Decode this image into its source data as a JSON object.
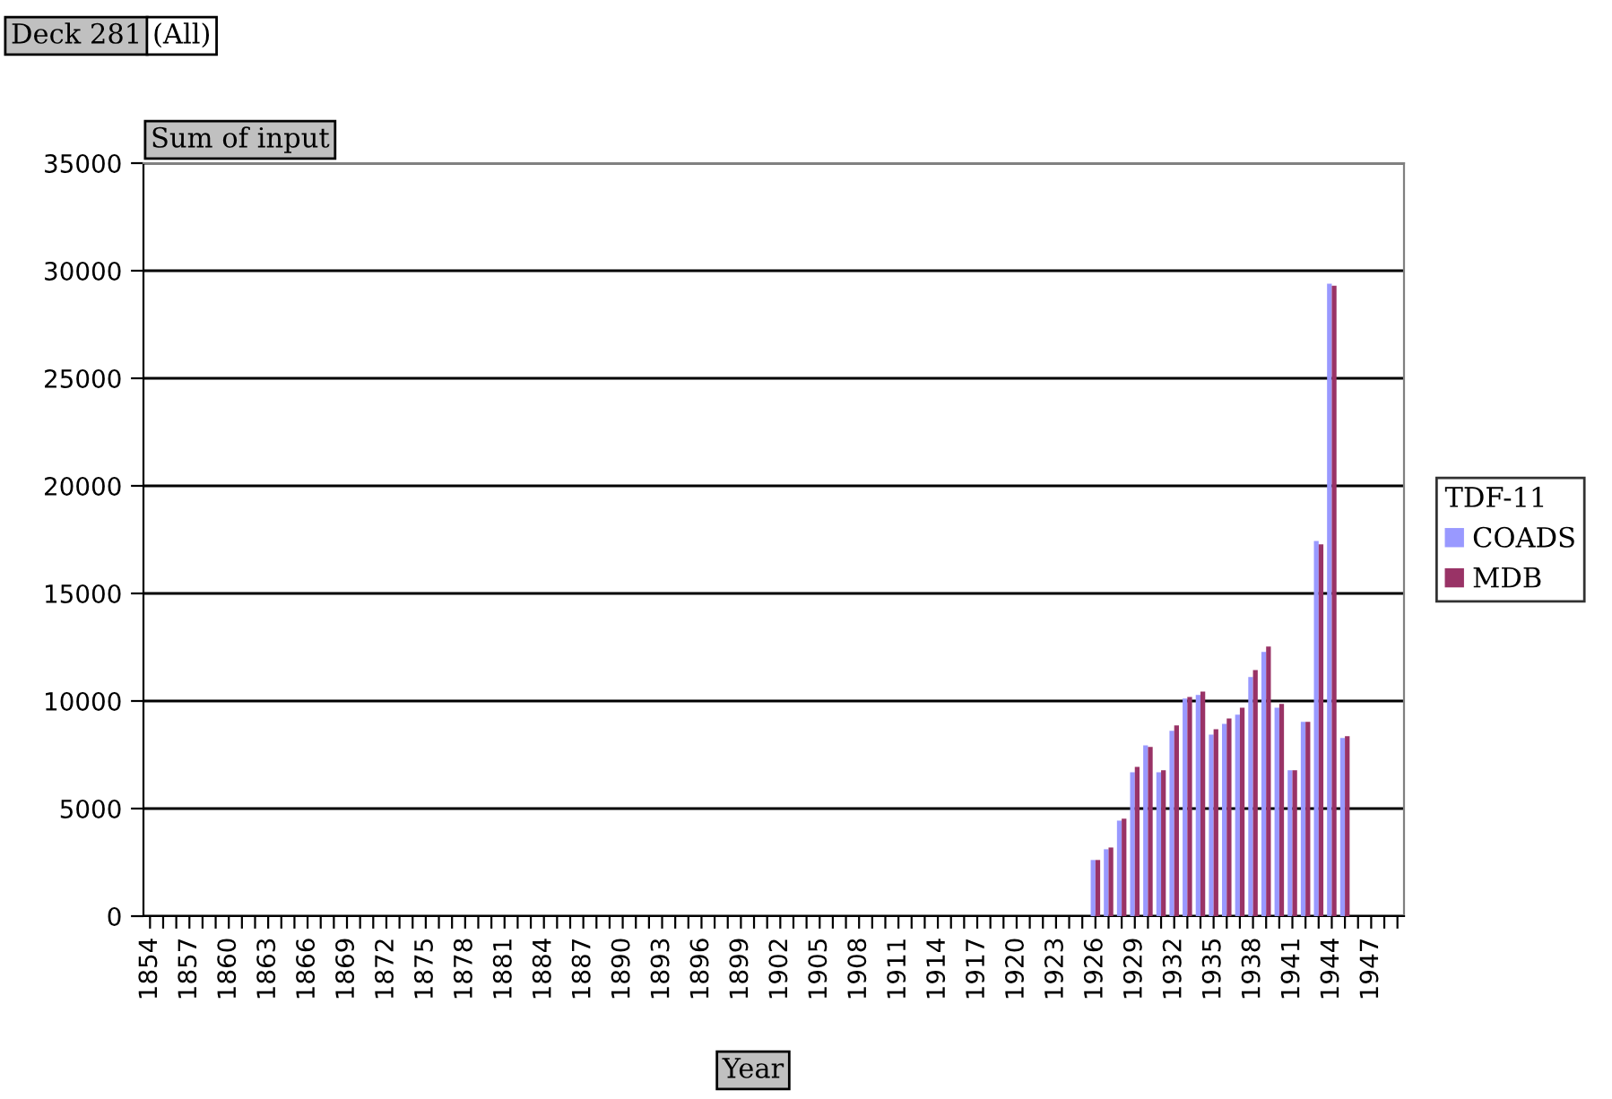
{
  "chart_data": {
    "type": "bar",
    "annotations": [
      "Deck 281",
      "(All)"
    ],
    "ylabel": "Sum of input",
    "xlabel": "Year",
    "legend_title": "TDF-11",
    "categories": [
      "1854",
      null,
      null,
      "1857",
      null,
      null,
      "1860",
      null,
      null,
      "1863",
      null,
      null,
      "1866",
      null,
      null,
      "1869",
      null,
      null,
      "1872",
      null,
      null,
      "1875",
      null,
      null,
      "1878",
      null,
      null,
      "1881",
      null,
      null,
      "1884",
      null,
      null,
      "1887",
      null,
      null,
      "1890",
      null,
      null,
      "1893",
      null,
      null,
      "1896",
      null,
      null,
      "1899",
      null,
      null,
      "1902",
      null,
      null,
      "1905",
      null,
      null,
      "1908",
      null,
      null,
      "1911",
      null,
      null,
      "1914",
      null,
      null,
      "1917",
      null,
      null,
      "1920",
      null,
      null,
      "1923",
      null,
      null,
      "1926",
      null,
      null,
      "1929",
      null,
      null,
      "1932",
      null,
      null,
      "1935",
      null,
      null,
      "1938",
      null,
      null,
      "1941",
      null,
      null,
      "1944",
      null,
      null,
      "1947",
      null,
      null
    ],
    "series": [
      {
        "name": "COADS",
        "color": "#9999ff",
        "values": [
          null,
          null,
          null,
          null,
          null,
          null,
          null,
          null,
          null,
          null,
          null,
          null,
          null,
          null,
          null,
          null,
          null,
          null,
          null,
          null,
          null,
          null,
          null,
          null,
          null,
          null,
          null,
          null,
          null,
          null,
          null,
          null,
          null,
          null,
          null,
          null,
          null,
          null,
          null,
          null,
          null,
          null,
          null,
          null,
          null,
          null,
          null,
          null,
          null,
          null,
          null,
          null,
          null,
          null,
          null,
          null,
          null,
          null,
          null,
          null,
          null,
          null,
          null,
          null,
          null,
          null,
          null,
          null,
          null,
          null,
          null,
          null,
          2610,
          3110,
          4440,
          6690,
          7940,
          6690,
          8610,
          10110,
          10280,
          8440,
          8940,
          9360,
          11110,
          12280,
          9690,
          6780,
          9030,
          17440,
          29400,
          8280,
          null,
          null,
          null,
          null
        ]
      },
      {
        "name": "MDB",
        "color": "#993366",
        "values": [
          null,
          null,
          null,
          null,
          null,
          null,
          null,
          null,
          null,
          null,
          null,
          null,
          null,
          null,
          null,
          null,
          null,
          null,
          null,
          null,
          null,
          null,
          null,
          null,
          null,
          null,
          null,
          null,
          null,
          null,
          null,
          null,
          null,
          null,
          null,
          null,
          null,
          null,
          null,
          null,
          null,
          null,
          null,
          null,
          null,
          null,
          null,
          null,
          null,
          null,
          null,
          null,
          null,
          null,
          null,
          null,
          null,
          null,
          null,
          null,
          null,
          null,
          null,
          null,
          null,
          null,
          null,
          null,
          null,
          null,
          null,
          null,
          2610,
          3190,
          4530,
          6940,
          7860,
          6780,
          8860,
          10190,
          10440,
          8690,
          9190,
          9690,
          11440,
          12530,
          9860,
          6780,
          9030,
          17280,
          29300,
          8360,
          null,
          null,
          null,
          null
        ]
      }
    ],
    "ylim": [
      0,
      35000
    ],
    "yticks": [
      0,
      5000,
      10000,
      15000,
      20000,
      25000,
      30000,
      35000
    ],
    "grid": "y",
    "legend": "right"
  }
}
